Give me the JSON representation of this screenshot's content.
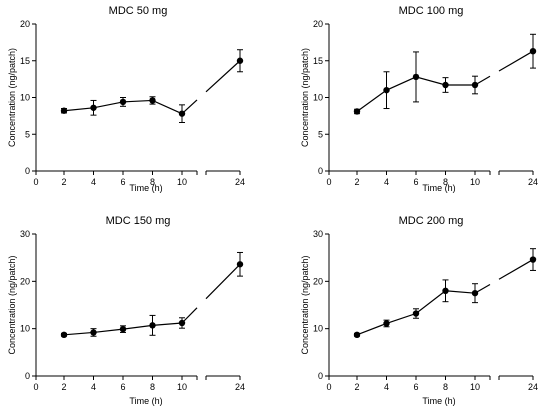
{
  "figure": {
    "background": "#ffffff",
    "ink": "#000000"
  },
  "chart_data": [
    {
      "type": "line",
      "title": "MDC 50 mg",
      "xlabel": "Time (h)",
      "ylabel": "Concentration (ng/patch)",
      "x": [
        2,
        4,
        6,
        8,
        10,
        24
      ],
      "y": [
        8.2,
        8.6,
        9.4,
        9.6,
        7.8,
        15.0
      ],
      "err": [
        0.3,
        1.0,
        0.6,
        0.5,
        1.2,
        1.5
      ],
      "ylim": [
        0,
        20
      ],
      "yticks": [
        "0",
        "5",
        "10",
        "15",
        "20"
      ],
      "xticks": [
        "0",
        "2",
        "4",
        "6",
        "8",
        "10",
        "24"
      ],
      "x_axis_break": "between 10 and 24",
      "grid": false,
      "legend": "none"
    },
    {
      "type": "line",
      "title": "MDC 100 mg",
      "xlabel": "Time (h)",
      "ylabel": "Concentration (ng/patch)",
      "x": [
        2,
        4,
        6,
        8,
        10,
        24
      ],
      "y": [
        8.1,
        11.0,
        12.8,
        11.7,
        11.7,
        16.3
      ],
      "err": [
        0.3,
        2.5,
        3.4,
        1.0,
        1.2,
        2.3
      ],
      "ylim": [
        0,
        20
      ],
      "yticks": [
        "0",
        "5",
        "10",
        "15",
        "20"
      ],
      "xticks": [
        "0",
        "2",
        "4",
        "6",
        "8",
        "10",
        "24"
      ],
      "x_axis_break": "between 10 and 24",
      "grid": false,
      "legend": "none"
    },
    {
      "type": "line",
      "title": "MDC 150 mg",
      "xlabel": "Time (h)",
      "ylabel": "Concentration (ng/patch)",
      "x": [
        2,
        4,
        6,
        8,
        10,
        24
      ],
      "y": [
        8.7,
        9.2,
        9.9,
        10.7,
        11.2,
        23.6
      ],
      "err": [
        0.3,
        0.8,
        0.7,
        2.1,
        1.1,
        2.5
      ],
      "ylim": [
        0,
        30
      ],
      "yticks": [
        "0",
        "10",
        "20",
        "30"
      ],
      "xticks": [
        "0",
        "2",
        "4",
        "6",
        "8",
        "10",
        "24"
      ],
      "x_axis_break": "between 10 and 24",
      "grid": false,
      "legend": "none"
    },
    {
      "type": "line",
      "title": "MDC 200 mg",
      "xlabel": "Time (h)",
      "ylabel": "Concentration (ng/patch)",
      "x": [
        2,
        4,
        6,
        8,
        10,
        24
      ],
      "y": [
        8.7,
        11.1,
        13.2,
        18.0,
        17.5,
        24.6
      ],
      "err": [
        0.3,
        0.7,
        1.0,
        2.3,
        2.0,
        2.3
      ],
      "ylim": [
        0,
        30
      ],
      "yticks": [
        "0",
        "10",
        "20",
        "30"
      ],
      "xticks": [
        "0",
        "2",
        "4",
        "6",
        "8",
        "10",
        "24"
      ],
      "x_axis_break": "between 10 and 24",
      "grid": false,
      "legend": "none"
    }
  ]
}
